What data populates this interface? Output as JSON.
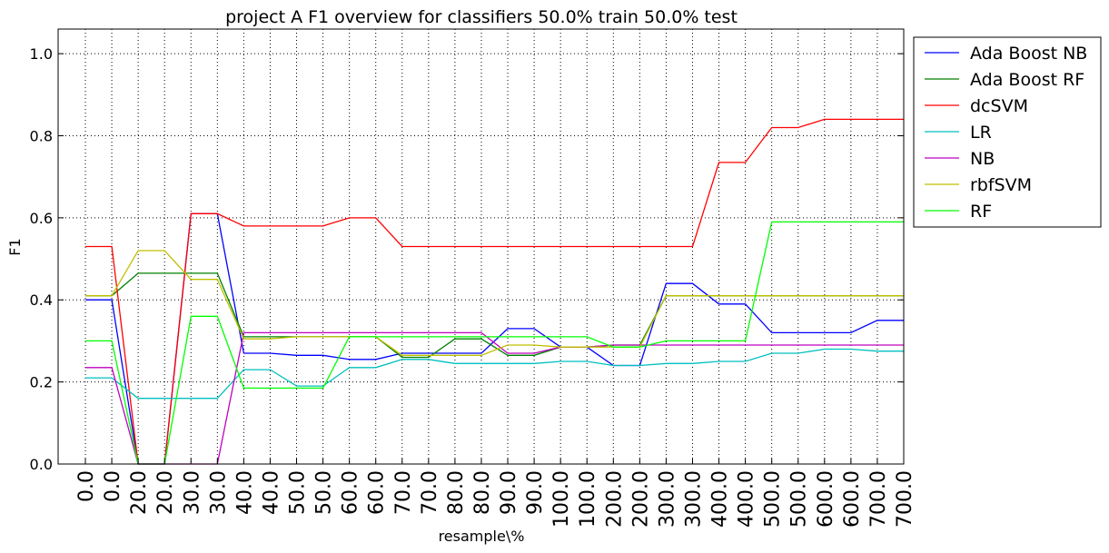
{
  "chart_data": {
    "type": "line",
    "title": "project A F1 overview for classifiers 50.0% train 50.0% test",
    "xlabel": "resample\\%",
    "ylabel": "F1",
    "ylim": [
      0.0,
      1.06
    ],
    "yticks": [
      "0.0",
      "0.2",
      "0.4",
      "0.6",
      "0.8",
      "1.0"
    ],
    "grid": true,
    "legend_position": "outside right",
    "categories": [
      "0.0",
      "0.0",
      "20.0",
      "20.0",
      "30.0",
      "30.0",
      "40.0",
      "40.0",
      "50.0",
      "50.0",
      "60.0",
      "60.0",
      "70.0",
      "70.0",
      "80.0",
      "80.0",
      "90.0",
      "90.0",
      "100.0",
      "100.0",
      "200.0",
      "200.0",
      "300.0",
      "300.0",
      "400.0",
      "400.0",
      "500.0",
      "500.0",
      "600.0",
      "600.0",
      "700.0",
      "700.0"
    ],
    "series": [
      {
        "name": "Ada Boost NB",
        "color": "#0000ff",
        "values": [
          0.4,
          0.4,
          0.0,
          0.0,
          0.61,
          0.61,
          0.27,
          0.27,
          0.265,
          0.265,
          0.255,
          0.255,
          0.27,
          0.27,
          0.27,
          0.27,
          0.33,
          0.33,
          0.285,
          0.285,
          0.24,
          0.24,
          0.44,
          0.44,
          0.39,
          0.39,
          0.32,
          0.32,
          0.32,
          0.32,
          0.35,
          0.35
        ]
      },
      {
        "name": "Ada Boost RF",
        "color": "#008000",
        "values": [
          0.41,
          0.41,
          0.465,
          0.465,
          0.465,
          0.465,
          0.31,
          0.31,
          0.31,
          0.31,
          0.31,
          0.31,
          0.26,
          0.26,
          0.305,
          0.305,
          0.265,
          0.265,
          0.285,
          0.285,
          0.29,
          0.29,
          0.41,
          0.41,
          0.41,
          0.41,
          0.41,
          0.41,
          0.41,
          0.41,
          0.41,
          0.41
        ]
      },
      {
        "name": "dcSVM",
        "color": "#ff0000",
        "values": [
          0.53,
          0.53,
          0.0,
          0.0,
          0.61,
          0.61,
          0.58,
          0.58,
          0.58,
          0.58,
          0.6,
          0.6,
          0.53,
          0.53,
          0.53,
          0.53,
          0.53,
          0.53,
          0.53,
          0.53,
          0.53,
          0.53,
          0.53,
          0.53,
          0.735,
          0.735,
          0.82,
          0.82,
          0.84,
          0.84,
          0.84,
          0.84
        ]
      },
      {
        "name": "LR",
        "color": "#00bfbf",
        "values": [
          0.21,
          0.21,
          0.16,
          0.16,
          0.16,
          0.16,
          0.23,
          0.23,
          0.19,
          0.19,
          0.235,
          0.235,
          0.255,
          0.255,
          0.245,
          0.245,
          0.245,
          0.245,
          0.25,
          0.25,
          0.24,
          0.24,
          0.245,
          0.245,
          0.25,
          0.25,
          0.27,
          0.27,
          0.28,
          0.28,
          0.275,
          0.275
        ]
      },
      {
        "name": "NB",
        "color": "#bf00bf",
        "values": [
          0.235,
          0.235,
          0.0,
          0.0,
          0.0,
          0.0,
          0.32,
          0.32,
          0.32,
          0.32,
          0.32,
          0.32,
          0.32,
          0.32,
          0.32,
          0.32,
          0.27,
          0.27,
          0.285,
          0.285,
          0.29,
          0.29,
          0.29,
          0.29,
          0.29,
          0.29,
          0.29,
          0.29,
          0.29,
          0.29,
          0.29,
          0.29
        ]
      },
      {
        "name": "rbfSVM",
        "color": "#bfbf00",
        "values": [
          0.41,
          0.41,
          0.52,
          0.52,
          0.45,
          0.45,
          0.305,
          0.305,
          0.31,
          0.31,
          0.31,
          0.31,
          0.265,
          0.265,
          0.265,
          0.265,
          0.29,
          0.29,
          0.285,
          0.285,
          0.285,
          0.285,
          0.41,
          0.41,
          0.41,
          0.41,
          0.41,
          0.41,
          0.41,
          0.41,
          0.41,
          0.41
        ]
      },
      {
        "name": "RF",
        "color": "#00ff00",
        "values": [
          0.3,
          0.3,
          0.0,
          0.0,
          0.36,
          0.36,
          0.185,
          0.185,
          0.185,
          0.185,
          0.31,
          0.31,
          0.31,
          0.31,
          0.31,
          0.31,
          0.31,
          0.31,
          0.31,
          0.31,
          0.285,
          0.285,
          0.3,
          0.3,
          0.3,
          0.3,
          0.59,
          0.59,
          0.59,
          0.59,
          0.59,
          0.59
        ]
      }
    ]
  }
}
